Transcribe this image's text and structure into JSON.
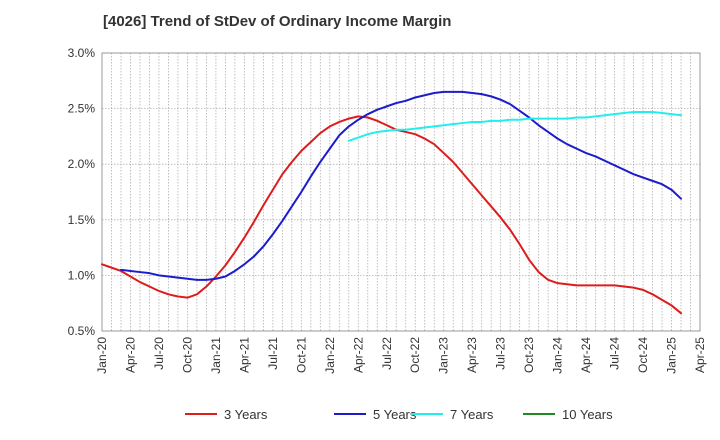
{
  "chart_data": {
    "type": "line",
    "title": "[4026]  Trend of StDev of Ordinary Income Margin",
    "xlabel": "",
    "ylabel": "",
    "ylim": [
      0.5,
      3.0
    ],
    "y_ticks": [
      "0.5%",
      "1.0%",
      "1.5%",
      "2.0%",
      "2.5%",
      "3.0%"
    ],
    "x_ticks": [
      "Jan-20",
      "Apr-20",
      "Jul-20",
      "Oct-20",
      "Jan-21",
      "Apr-21",
      "Jul-21",
      "Oct-21",
      "Jan-22",
      "Apr-22",
      "Jul-22",
      "Oct-22",
      "Jan-23",
      "Apr-23",
      "Jul-23",
      "Oct-23",
      "Jan-24",
      "Apr-24",
      "Jul-24",
      "Oct-24",
      "Jan-25",
      "Apr-25"
    ],
    "grid": true,
    "legend_position": "bottom",
    "series": [
      {
        "name": "3 Years",
        "color": "#dd1c1c",
        "points": [
          [
            "Jan-20",
            1.1
          ],
          [
            "Feb-20",
            1.07
          ],
          [
            "Mar-20",
            1.04
          ],
          [
            "Apr-20",
            0.99
          ],
          [
            "May-20",
            0.94
          ],
          [
            "Jun-20",
            0.9
          ],
          [
            "Jul-20",
            0.86
          ],
          [
            "Aug-20",
            0.83
          ],
          [
            "Sep-20",
            0.81
          ],
          [
            "Oct-20",
            0.8
          ],
          [
            "Nov-20",
            0.83
          ],
          [
            "Dec-20",
            0.9
          ],
          [
            "Jan-21",
            0.99
          ],
          [
            "Feb-21",
            1.09
          ],
          [
            "Mar-21",
            1.21
          ],
          [
            "Apr-21",
            1.34
          ],
          [
            "May-21",
            1.48
          ],
          [
            "Jun-21",
            1.63
          ],
          [
            "Jul-21",
            1.77
          ],
          [
            "Aug-21",
            1.91
          ],
          [
            "Sep-21",
            2.02
          ],
          [
            "Oct-21",
            2.12
          ],
          [
            "Nov-21",
            2.2
          ],
          [
            "Dec-21",
            2.28
          ],
          [
            "Jan-22",
            2.34
          ],
          [
            "Feb-22",
            2.38
          ],
          [
            "Mar-22",
            2.41
          ],
          [
            "Apr-22",
            2.43
          ],
          [
            "May-22",
            2.42
          ],
          [
            "Jun-22",
            2.39
          ],
          [
            "Jul-22",
            2.35
          ],
          [
            "Aug-22",
            2.31
          ],
          [
            "Sep-22",
            2.29
          ],
          [
            "Oct-22",
            2.27
          ],
          [
            "Nov-22",
            2.23
          ],
          [
            "Dec-22",
            2.18
          ],
          [
            "Jan-23",
            2.1
          ],
          [
            "Feb-23",
            2.02
          ],
          [
            "Mar-23",
            1.92
          ],
          [
            "Apr-23",
            1.82
          ],
          [
            "May-23",
            1.72
          ],
          [
            "Jun-23",
            1.62
          ],
          [
            "Jul-23",
            1.52
          ],
          [
            "Aug-23",
            1.41
          ],
          [
            "Sep-23",
            1.28
          ],
          [
            "Oct-23",
            1.14
          ],
          [
            "Nov-23",
            1.03
          ],
          [
            "Dec-23",
            0.96
          ],
          [
            "Jan-24",
            0.93
          ],
          [
            "Feb-24",
            0.92
          ],
          [
            "Mar-24",
            0.91
          ],
          [
            "Apr-24",
            0.91
          ],
          [
            "May-24",
            0.91
          ],
          [
            "Jun-24",
            0.91
          ],
          [
            "Jul-24",
            0.91
          ],
          [
            "Aug-24",
            0.9
          ],
          [
            "Sep-24",
            0.89
          ],
          [
            "Oct-24",
            0.87
          ],
          [
            "Nov-24",
            0.83
          ],
          [
            "Dec-24",
            0.78
          ],
          [
            "Jan-25",
            0.73
          ],
          [
            "Feb-25",
            0.66
          ]
        ]
      },
      {
        "name": "5 Years",
        "color": "#1c1ccc",
        "points": [
          [
            "Mar-20",
            1.05
          ],
          [
            "Apr-20",
            1.04
          ],
          [
            "May-20",
            1.03
          ],
          [
            "Jun-20",
            1.02
          ],
          [
            "Jul-20",
            1.0
          ],
          [
            "Aug-20",
            0.99
          ],
          [
            "Sep-20",
            0.98
          ],
          [
            "Oct-20",
            0.97
          ],
          [
            "Nov-20",
            0.96
          ],
          [
            "Dec-20",
            0.96
          ],
          [
            "Jan-21",
            0.97
          ],
          [
            "Feb-21",
            0.99
          ],
          [
            "Mar-21",
            1.04
          ],
          [
            "Apr-21",
            1.1
          ],
          [
            "May-21",
            1.17
          ],
          [
            "Jun-21",
            1.26
          ],
          [
            "Jul-21",
            1.37
          ],
          [
            "Aug-21",
            1.49
          ],
          [
            "Sep-21",
            1.62
          ],
          [
            "Oct-21",
            1.75
          ],
          [
            "Nov-21",
            1.89
          ],
          [
            "Dec-21",
            2.02
          ],
          [
            "Jan-22",
            2.14
          ],
          [
            "Feb-22",
            2.26
          ],
          [
            "Mar-22",
            2.34
          ],
          [
            "Apr-22",
            2.4
          ],
          [
            "May-22",
            2.45
          ],
          [
            "Jun-22",
            2.49
          ],
          [
            "Jul-22",
            2.52
          ],
          [
            "Aug-22",
            2.55
          ],
          [
            "Sep-22",
            2.57
          ],
          [
            "Oct-22",
            2.6
          ],
          [
            "Nov-22",
            2.62
          ],
          [
            "Dec-22",
            2.64
          ],
          [
            "Jan-23",
            2.65
          ],
          [
            "Feb-23",
            2.65
          ],
          [
            "Mar-23",
            2.65
          ],
          [
            "Apr-23",
            2.64
          ],
          [
            "May-23",
            2.63
          ],
          [
            "Jun-23",
            2.61
          ],
          [
            "Jul-23",
            2.58
          ],
          [
            "Aug-23",
            2.54
          ],
          [
            "Sep-23",
            2.48
          ],
          [
            "Oct-23",
            2.42
          ],
          [
            "Nov-23",
            2.35
          ],
          [
            "Dec-23",
            2.29
          ],
          [
            "Jan-24",
            2.23
          ],
          [
            "Feb-24",
            2.18
          ],
          [
            "Mar-24",
            2.14
          ],
          [
            "Apr-24",
            2.1
          ],
          [
            "May-24",
            2.07
          ],
          [
            "Jun-24",
            2.03
          ],
          [
            "Jul-24",
            1.99
          ],
          [
            "Aug-24",
            1.95
          ],
          [
            "Sep-24",
            1.91
          ],
          [
            "Oct-24",
            1.88
          ],
          [
            "Nov-24",
            1.85
          ],
          [
            "Dec-24",
            1.82
          ],
          [
            "Jan-25",
            1.77
          ],
          [
            "Feb-25",
            1.69
          ]
        ]
      },
      {
        "name": "7 Years",
        "color": "#22eeee",
        "points": [
          [
            "Mar-22",
            2.21
          ],
          [
            "Apr-22",
            2.24
          ],
          [
            "May-22",
            2.27
          ],
          [
            "Jun-22",
            2.29
          ],
          [
            "Jul-22",
            2.3
          ],
          [
            "Aug-22",
            2.31
          ],
          [
            "Sep-22",
            2.31
          ],
          [
            "Oct-22",
            2.32
          ],
          [
            "Nov-22",
            2.33
          ],
          [
            "Dec-22",
            2.34
          ],
          [
            "Jan-23",
            2.35
          ],
          [
            "Feb-23",
            2.36
          ],
          [
            "Mar-23",
            2.37
          ],
          [
            "Apr-23",
            2.38
          ],
          [
            "May-23",
            2.38
          ],
          [
            "Jun-23",
            2.39
          ],
          [
            "Jul-23",
            2.39
          ],
          [
            "Aug-23",
            2.4
          ],
          [
            "Sep-23",
            2.4
          ],
          [
            "Oct-23",
            2.41
          ],
          [
            "Nov-23",
            2.41
          ],
          [
            "Dec-23",
            2.41
          ],
          [
            "Jan-24",
            2.41
          ],
          [
            "Feb-24",
            2.41
          ],
          [
            "Mar-24",
            2.42
          ],
          [
            "Apr-24",
            2.42
          ],
          [
            "May-24",
            2.43
          ],
          [
            "Jun-24",
            2.44
          ],
          [
            "Jul-24",
            2.45
          ],
          [
            "Aug-24",
            2.46
          ],
          [
            "Sep-24",
            2.47
          ],
          [
            "Oct-24",
            2.47
          ],
          [
            "Nov-24",
            2.47
          ],
          [
            "Dec-24",
            2.46
          ],
          [
            "Jan-25",
            2.45
          ],
          [
            "Feb-25",
            2.44
          ]
        ]
      },
      {
        "name": "10 Years",
        "color": "#228822",
        "points": []
      }
    ]
  }
}
